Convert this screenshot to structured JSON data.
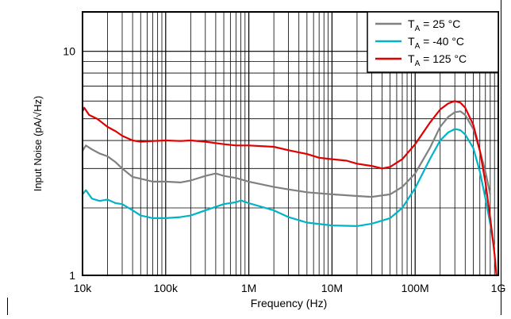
{
  "chart_data": {
    "type": "line",
    "xlabel": "Frequency (Hz)",
    "ylabel": "Input Noise (pA/√Hz)",
    "xscale": "log",
    "yscale": "log",
    "xlim": [
      10000,
      1000000000
    ],
    "ylim": [
      1,
      15
    ],
    "grid": true,
    "legend_position": "top-right",
    "x_ticks": [
      {
        "value": 10000,
        "label": "10k"
      },
      {
        "value": 100000,
        "label": "100k"
      },
      {
        "value": 1000000,
        "label": "1M"
      },
      {
        "value": 10000000,
        "label": "10M"
      },
      {
        "value": 100000000,
        "label": "100M"
      },
      {
        "value": 1000000000,
        "label": "1G"
      }
    ],
    "y_ticks": [
      {
        "value": 1,
        "label": "1"
      },
      {
        "value": 10,
        "label": "10"
      }
    ],
    "series": [
      {
        "name_main": "T",
        "name_sub": "A",
        "name_rest": " = 25 °C",
        "color": "#808080",
        "x": [
          10000,
          11000,
          13000,
          16000,
          20000,
          25000,
          30000,
          40000,
          50000,
          70000,
          100000,
          150000,
          200000,
          300000,
          400000,
          500000,
          700000,
          1000000,
          2000000,
          3000000,
          5000000,
          10000000,
          20000000,
          30000000,
          50000000,
          70000000,
          100000000,
          150000000,
          200000000,
          250000000,
          300000000,
          350000000,
          400000000,
          500000000,
          600000000,
          700000000,
          800000000
        ],
        "y": [
          3.6,
          3.8,
          3.65,
          3.5,
          3.4,
          3.2,
          3.0,
          2.75,
          2.7,
          2.62,
          2.62,
          2.6,
          2.65,
          2.78,
          2.85,
          2.78,
          2.72,
          2.62,
          2.48,
          2.42,
          2.35,
          2.3,
          2.26,
          2.24,
          2.3,
          2.48,
          2.85,
          3.7,
          4.6,
          5.1,
          5.35,
          5.4,
          5.2,
          4.5,
          3.6,
          2.9,
          2.3
        ]
      },
      {
        "name_main": "T",
        "name_sub": "A",
        "name_rest": " = -40 °C",
        "color": "#00b4c8",
        "x": [
          10000,
          11000,
          13000,
          16000,
          20000,
          25000,
          30000,
          40000,
          50000,
          70000,
          100000,
          150000,
          200000,
          300000,
          500000,
          700000,
          800000,
          1000000,
          2000000,
          3000000,
          5000000,
          10000000,
          20000000,
          30000000,
          50000000,
          70000000,
          100000000,
          150000000,
          200000000,
          250000000,
          300000000,
          350000000,
          400000000,
          500000000,
          600000000,
          700000000,
          800000000,
          900000000
        ],
        "y": [
          2.3,
          2.4,
          2.2,
          2.15,
          2.18,
          2.1,
          2.08,
          1.95,
          1.85,
          1.8,
          1.8,
          1.82,
          1.85,
          1.95,
          2.08,
          2.12,
          2.16,
          2.1,
          1.95,
          1.82,
          1.72,
          1.67,
          1.66,
          1.7,
          1.8,
          2.0,
          2.45,
          3.3,
          4.0,
          4.35,
          4.5,
          4.45,
          4.25,
          3.7,
          2.9,
          2.2,
          1.7,
          1.3
        ]
      },
      {
        "name_main": "T",
        "name_sub": "A",
        "name_rest": " = 125 °C",
        "color": "#e00000",
        "x": [
          10000,
          10500,
          12000,
          15000,
          20000,
          25000,
          30000,
          40000,
          50000,
          70000,
          100000,
          150000,
          200000,
          300000,
          500000,
          700000,
          1000000,
          2000000,
          3000000,
          5000000,
          7000000,
          10000000,
          15000000,
          20000000,
          30000000,
          40000000,
          50000000,
          70000000,
          100000000,
          150000000,
          200000000,
          250000000,
          300000000,
          350000000,
          400000000,
          500000000,
          600000000,
          700000000,
          800000000,
          900000000,
          950000000
        ],
        "y": [
          5.4,
          5.6,
          5.2,
          5.0,
          4.6,
          4.4,
          4.2,
          4.0,
          3.95,
          3.98,
          4.0,
          3.98,
          4.0,
          3.95,
          3.85,
          3.8,
          3.8,
          3.75,
          3.62,
          3.48,
          3.35,
          3.3,
          3.25,
          3.15,
          3.08,
          3.0,
          3.05,
          3.3,
          3.85,
          4.8,
          5.5,
          5.85,
          6.0,
          5.9,
          5.6,
          4.7,
          3.6,
          2.6,
          1.8,
          1.25,
          1.0
        ]
      }
    ]
  }
}
